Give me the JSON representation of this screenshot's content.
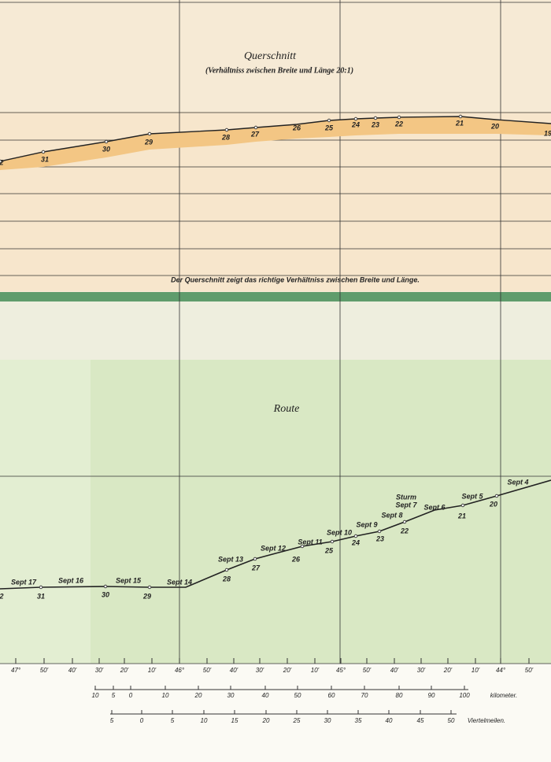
{
  "cross_section": {
    "title": "Querschnitt",
    "subtitle": "(Verhältniss zwischen Breite und Länge 20:1)",
    "labels": [
      "2",
      "31",
      "30",
      "29",
      "28",
      "27",
      "26",
      "25",
      "24",
      "23",
      "22",
      "21",
      "20",
      "19"
    ],
    "caption": "Der Querschnitt zeigt das richtige Verhältniss zwischen Breite und Länge."
  },
  "route": {
    "title": "Route",
    "dates": [
      "Sept 17",
      "Sept 16",
      "Sept 15",
      "Sept 14",
      "Sept 13",
      "Sept 12",
      "Sept 11",
      "Sept 10",
      "Sept 9",
      "Sept 8",
      "Sturm",
      "Sept 7",
      "Sept 6",
      "Sept 5",
      "Sept 4"
    ],
    "numbers": [
      "2",
      "31",
      "30",
      "29",
      "28",
      "27",
      "26",
      "25",
      "24",
      "23",
      "22",
      "21",
      "20"
    ]
  },
  "axis": {
    "labels": [
      "47°",
      "50'",
      "40'",
      "30'",
      "20'",
      "10'",
      "46°",
      "50'",
      "40'",
      "30'",
      "20'",
      "10'",
      "45°",
      "50'",
      "40'",
      "30'",
      "20'",
      "10'",
      "44°",
      "50'"
    ]
  },
  "scale": {
    "kilometer": {
      "ticks": [
        "10",
        "5",
        "0",
        "10",
        "20",
        "30",
        "40",
        "50",
        "60",
        "70",
        "80",
        "90",
        "100"
      ],
      "unit": "kilometer."
    },
    "viertelmeilen": {
      "ticks": [
        "5",
        "0",
        "5",
        "10",
        "15",
        "20",
        "25",
        "30",
        "35",
        "40",
        "45",
        "50"
      ],
      "unit": "Viertelmeilen."
    }
  }
}
